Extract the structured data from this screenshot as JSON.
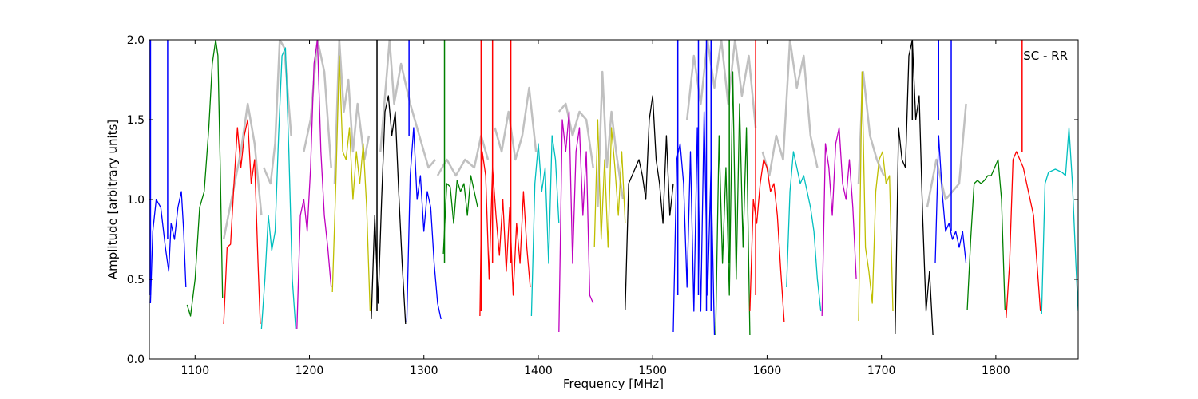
{
  "chart_data": {
    "type": "line",
    "title": "",
    "xlabel": "Frequency [MHz]",
    "ylabel": "Amplitude [arbitrary units]",
    "annotation": "SC - RR",
    "xlim": [
      1060,
      1872
    ],
    "ylim": [
      0.0,
      2.0
    ],
    "xticks": [
      1100,
      1200,
      1300,
      1400,
      1500,
      1600,
      1700,
      1800
    ],
    "yticks": [
      0.0,
      0.5,
      1.0,
      1.5,
      2.0
    ],
    "xtick_labels": [
      "1100",
      "1200",
      "1300",
      "1400",
      "1500",
      "1600",
      "1700",
      "1800"
    ],
    "ytick_labels": [
      "0.0",
      "0.5",
      "1.0",
      "1.5",
      "2.0"
    ],
    "grid": false,
    "reference_color": "#c0c0c0",
    "palette": [
      "#0000ff",
      "#008000",
      "#ff0000",
      "#00bfbf",
      "#bf00bf",
      "#bfbf00",
      "#000000"
    ],
    "segments": [
      {
        "color": "#0000ff",
        "x": [
          1061,
          1063,
          1066,
          1070,
          1074,
          1077,
          1079,
          1082,
          1085,
          1088,
          1090,
          1092
        ],
        "y": [
          0.35,
          0.8,
          1.0,
          0.95,
          0.7,
          0.55,
          0.85,
          0.75,
          0.95,
          1.05,
          0.8,
          0.45
        ]
      },
      {
        "color": "#008000",
        "x": [
          1093,
          1096,
          1100,
          1104,
          1108,
          1112,
          1115,
          1118,
          1120,
          1122,
          1124
        ],
        "y": [
          0.34,
          0.27,
          0.5,
          0.95,
          1.05,
          1.45,
          1.85,
          2.0,
          1.9,
          1.2,
          0.38
        ]
      },
      {
        "color": "#ff0000",
        "x": [
          1125,
          1128,
          1131,
          1134,
          1137,
          1140,
          1143,
          1146,
          1149,
          1152,
          1155,
          1157
        ],
        "y": [
          0.22,
          0.7,
          0.72,
          1.1,
          1.45,
          1.2,
          1.4,
          1.5,
          1.1,
          1.25,
          0.6,
          0.22
        ]
      },
      {
        "color": "#00bfbf",
        "x": [
          1158,
          1161,
          1164,
          1167,
          1170,
          1173,
          1176,
          1179,
          1182,
          1185,
          1188
        ],
        "y": [
          0.19,
          0.5,
          0.9,
          0.68,
          0.8,
          1.4,
          1.9,
          1.95,
          1.3,
          0.5,
          0.19
        ]
      },
      {
        "color": "#bf00bf",
        "x": [
          1189,
          1192,
          1195,
          1198,
          1201,
          1204,
          1207,
          1210,
          1213,
          1216,
          1219
        ],
        "y": [
          0.19,
          0.9,
          1.0,
          0.8,
          1.2,
          1.85,
          2.0,
          1.3,
          0.9,
          0.7,
          0.45
        ]
      },
      {
        "color": "#bfbf00",
        "x": [
          1220,
          1223,
          1226,
          1229,
          1232,
          1235,
          1238,
          1241,
          1244,
          1247,
          1250,
          1253
        ],
        "y": [
          0.42,
          1.1,
          1.9,
          1.3,
          1.25,
          1.45,
          1.0,
          1.3,
          1.1,
          1.35,
          0.95,
          0.3
        ]
      },
      {
        "color": "#000000",
        "x": [
          1254,
          1257,
          1260,
          1263,
          1266,
          1269,
          1272,
          1275,
          1278,
          1281,
          1284
        ],
        "y": [
          0.25,
          0.9,
          0.35,
          1.0,
          1.55,
          1.65,
          1.4,
          1.55,
          1.05,
          0.6,
          0.22
        ]
      },
      {
        "color": "#0000ff",
        "x": [
          1285,
          1288,
          1291,
          1294,
          1297,
          1300,
          1303,
          1306,
          1309,
          1312,
          1315
        ],
        "y": [
          0.23,
          1.15,
          1.45,
          1.0,
          1.15,
          0.8,
          1.05,
          0.95,
          0.6,
          0.35,
          0.25
        ]
      },
      {
        "color": "#008000",
        "x": [
          1317,
          1320,
          1323,
          1326,
          1329,
          1332,
          1335,
          1338,
          1341,
          1344,
          1347
        ],
        "y": [
          0.66,
          1.1,
          1.08,
          0.85,
          1.12,
          1.05,
          1.1,
          0.9,
          1.15,
          1.05,
          0.95
        ]
      },
      {
        "color": "#ff0000",
        "x": [
          1349,
          1351,
          1354,
          1357,
          1360,
          1363,
          1366,
          1369,
          1372,
          1375,
          1378,
          1381,
          1384,
          1387,
          1390,
          1393
        ],
        "y": [
          0.27,
          1.3,
          1.15,
          0.5,
          1.2,
          0.9,
          0.65,
          1.0,
          0.55,
          0.95,
          0.4,
          0.85,
          0.6,
          1.05,
          0.7,
          0.45
        ]
      },
      {
        "color": "#00bfbf",
        "x": [
          1394,
          1397,
          1400,
          1403,
          1406,
          1409,
          1412,
          1415,
          1418
        ],
        "y": [
          0.27,
          1.1,
          1.35,
          1.05,
          1.2,
          0.6,
          1.4,
          1.25,
          0.85
        ]
      },
      {
        "color": "#bf00bf",
        "x": [
          1418,
          1421,
          1424,
          1427,
          1430,
          1433,
          1436,
          1439,
          1442,
          1445,
          1448
        ],
        "y": [
          0.17,
          1.5,
          1.3,
          1.55,
          0.6,
          1.3,
          1.45,
          0.9,
          1.3,
          0.4,
          0.35
        ]
      },
      {
        "color": "#bfbf00",
        "x": [
          1449,
          1452,
          1455,
          1458,
          1461,
          1464,
          1467,
          1470,
          1473,
          1476
        ],
        "y": [
          0.7,
          1.5,
          0.75,
          1.25,
          0.7,
          1.45,
          1.2,
          0.9,
          1.3,
          0.85
        ]
      },
      {
        "color": "#000000",
        "x": [
          1476,
          1479,
          1482,
          1485,
          1488,
          1491,
          1494,
          1497,
          1500,
          1503,
          1506,
          1509,
          1512,
          1515,
          1518
        ],
        "y": [
          0.31,
          1.1,
          1.15,
          1.2,
          1.25,
          1.15,
          1.0,
          1.5,
          1.65,
          1.25,
          1.1,
          0.85,
          1.4,
          0.9,
          1.1
        ]
      },
      {
        "color": "#0000ff",
        "x": [
          1518,
          1521,
          1524,
          1527,
          1530,
          1533,
          1536,
          1539,
          1542,
          1545,
          1548,
          1551,
          1554
        ],
        "y": [
          0.17,
          1.25,
          1.35,
          1.1,
          0.45,
          1.3,
          0.3,
          1.45,
          0.3,
          1.55,
          0.4,
          1.2,
          0.15
        ]
      },
      {
        "color": "#008000",
        "x": [
          1555,
          1558,
          1561,
          1564,
          1567,
          1570,
          1573,
          1576,
          1579,
          1582,
          1585
        ],
        "y": [
          0.15,
          1.4,
          0.6,
          1.2,
          0.4,
          1.8,
          0.5,
          1.6,
          0.7,
          1.45,
          0.15
        ]
      },
      {
        "color": "#ff0000",
        "x": [
          1585,
          1588,
          1591,
          1594,
          1597,
          1600,
          1603,
          1606,
          1609,
          1612,
          1615
        ],
        "y": [
          0.3,
          1.0,
          0.85,
          1.1,
          1.25,
          1.2,
          1.05,
          1.1,
          0.9,
          0.55,
          0.23
        ]
      },
      {
        "color": "#00bfbf",
        "x": [
          1617,
          1620,
          1623,
          1626,
          1629,
          1632,
          1635,
          1638,
          1641,
          1644,
          1647
        ],
        "y": [
          0.45,
          1.05,
          1.3,
          1.2,
          1.1,
          1.15,
          1.05,
          0.95,
          0.8,
          0.5,
          0.3
        ]
      },
      {
        "color": "#bf00bf",
        "x": [
          1648,
          1651,
          1654,
          1657,
          1660,
          1663,
          1666,
          1669,
          1672,
          1675,
          1678
        ],
        "y": [
          0.27,
          1.35,
          1.2,
          0.9,
          1.35,
          1.45,
          1.1,
          1.0,
          1.25,
          0.95,
          0.5
        ]
      },
      {
        "color": "#bfbf00",
        "x": [
          1680,
          1683,
          1686,
          1689,
          1692,
          1695,
          1698,
          1701,
          1704,
          1707,
          1710
        ],
        "y": [
          0.24,
          1.8,
          0.7,
          0.55,
          0.35,
          1.05,
          1.25,
          1.3,
          1.1,
          1.15,
          0.3
        ]
      },
      {
        "color": "#000000",
        "x": [
          1712,
          1715,
          1718,
          1721,
          1724,
          1727,
          1730,
          1733,
          1736,
          1739,
          1742,
          1745
        ],
        "y": [
          0.16,
          1.45,
          1.25,
          1.2,
          1.9,
          2.0,
          1.5,
          1.65,
          0.9,
          0.3,
          0.55,
          0.15
        ]
      },
      {
        "color": "#0000ff",
        "x": [
          1747,
          1750,
          1753,
          1756,
          1759,
          1762,
          1765,
          1768,
          1771,
          1774
        ],
        "y": [
          0.6,
          1.4,
          1.05,
          0.8,
          0.85,
          0.75,
          0.8,
          0.7,
          0.8,
          0.6
        ]
      },
      {
        "color": "#008000",
        "x": [
          1775,
          1778,
          1781,
          1784,
          1787,
          1790,
          1793,
          1796,
          1799,
          1802,
          1805,
          1808
        ],
        "y": [
          0.31,
          0.75,
          1.1,
          1.12,
          1.1,
          1.12,
          1.15,
          1.15,
          1.2,
          1.25,
          1.0,
          0.31
        ]
      },
      {
        "color": "#ff0000",
        "x": [
          1809,
          1812,
          1815,
          1818,
          1821,
          1824,
          1827,
          1830,
          1833,
          1836,
          1839
        ],
        "y": [
          0.26,
          0.6,
          1.25,
          1.3,
          1.25,
          1.2,
          1.1,
          1.0,
          0.9,
          0.6,
          0.3
        ]
      },
      {
        "color": "#00bfbf",
        "x": [
          1840,
          1843,
          1846,
          1849,
          1852,
          1855,
          1858,
          1861,
          1864,
          1867,
          1870,
          1872
        ],
        "y": [
          0.28,
          1.1,
          1.17,
          1.18,
          1.19,
          1.18,
          1.17,
          1.15,
          1.45,
          1.1,
          0.6,
          0.3
        ]
      }
    ],
    "spikes": [
      {
        "color": "#0000ff",
        "x": 1061,
        "y": [
          0.4,
          2.0
        ]
      },
      {
        "color": "#0000ff",
        "x": 1076,
        "y": [
          0.75,
          2.0
        ]
      },
      {
        "color": "#000000",
        "x": 1259,
        "y": [
          0.3,
          2.0
        ]
      },
      {
        "color": "#0000ff",
        "x": 1287,
        "y": [
          1.4,
          2.0
        ]
      },
      {
        "color": "#008000",
        "x": 1318,
        "y": [
          0.6,
          2.0
        ]
      },
      {
        "color": "#ff0000",
        "x": 1350,
        "y": [
          0.3,
          2.0
        ]
      },
      {
        "color": "#ff0000",
        "x": 1360,
        "y": [
          0.6,
          2.0
        ]
      },
      {
        "color": "#ff0000",
        "x": 1376,
        "y": [
          0.6,
          2.0
        ]
      },
      {
        "color": "#0000ff",
        "x": 1522,
        "y": [
          0.4,
          2.0
        ]
      },
      {
        "color": "#0000ff",
        "x": 1540,
        "y": [
          0.4,
          2.0
        ]
      },
      {
        "color": "#0000ff",
        "x": 1547,
        "y": [
          0.3,
          2.0
        ]
      },
      {
        "color": "#0000ff",
        "x": 1551,
        "y": [
          0.3,
          2.0
        ]
      },
      {
        "color": "#008000",
        "x": 1567,
        "y": [
          0.6,
          2.0
        ]
      },
      {
        "color": "#ff0000",
        "x": 1590,
        "y": [
          0.4,
          2.0
        ]
      },
      {
        "color": "#000000",
        "x": 1727,
        "y": [
          1.5,
          2.0
        ]
      },
      {
        "color": "#0000ff",
        "x": 1750,
        "y": [
          1.5,
          2.0
        ]
      },
      {
        "color": "#0000ff",
        "x": 1761,
        "y": [
          0.8,
          2.0
        ]
      },
      {
        "color": "#ff0000",
        "x": 1823,
        "y": [
          1.3,
          2.0
        ]
      }
    ],
    "reference": [
      {
        "x": [
          1125,
          1140,
          1146,
          1152,
          1158
        ],
        "y": [
          0.75,
          1.3,
          1.6,
          1.35,
          0.9
        ]
      },
      {
        "x": [
          1160,
          1166,
          1170,
          1174,
          1178,
          1184
        ],
        "y": [
          1.2,
          1.1,
          1.35,
          2.0,
          1.95,
          1.4
        ]
      },
      {
        "x": [
          1195,
          1201,
          1207,
          1213,
          1219
        ],
        "y": [
          1.3,
          1.5,
          2.0,
          1.8,
          1.2
        ]
      },
      {
        "x": [
          1222,
          1226,
          1230,
          1234,
          1238,
          1242,
          1248,
          1252
        ],
        "y": [
          1.1,
          2.0,
          1.55,
          1.75,
          1.3,
          1.6,
          1.25,
          1.4
        ]
      },
      {
        "x": [
          1262,
          1270,
          1274,
          1280,
          1288,
          1296,
          1304,
          1310
        ],
        "y": [
          1.3,
          2.0,
          1.6,
          1.85,
          1.6,
          1.4,
          1.2,
          1.25
        ]
      },
      {
        "x": [
          1312,
          1320,
          1328,
          1336,
          1344,
          1350,
          1356
        ],
        "y": [
          1.15,
          1.25,
          1.15,
          1.25,
          1.2,
          1.4,
          1.25
        ]
      },
      {
        "x": [
          1362,
          1368,
          1374,
          1380,
          1386,
          1392,
          1398
        ],
        "y": [
          1.45,
          1.3,
          1.55,
          1.25,
          1.4,
          1.7,
          1.3
        ]
      },
      {
        "x": [
          1418,
          1424,
          1430,
          1436,
          1442,
          1448
        ],
        "y": [
          1.55,
          1.6,
          1.4,
          1.55,
          1.5,
          1.2
        ]
      },
      {
        "x": [
          1452,
          1456,
          1460,
          1464,
          1468,
          1474
        ],
        "y": [
          0.95,
          1.8,
          1.2,
          1.55,
          1.3,
          1.0
        ]
      },
      {
        "x": [
          1530,
          1536,
          1542,
          1548,
          1554,
          1560,
          1566,
          1572,
          1578,
          1584,
          1590
        ],
        "y": [
          1.5,
          1.9,
          1.6,
          2.0,
          1.7,
          2.0,
          1.6,
          2.0,
          1.65,
          1.9,
          1.45
        ]
      },
      {
        "x": [
          1596,
          1602,
          1608,
          1614,
          1620,
          1626,
          1632,
          1638,
          1644
        ],
        "y": [
          1.3,
          1.15,
          1.4,
          1.25,
          2.0,
          1.7,
          1.9,
          1.4,
          1.2
        ]
      },
      {
        "x": [
          1680,
          1684,
          1690,
          1696,
          1702
        ],
        "y": [
          1.1,
          1.8,
          1.4,
          1.25,
          1.15
        ]
      },
      {
        "x": [
          1740,
          1748,
          1756,
          1762,
          1768,
          1774
        ],
        "y": [
          0.95,
          1.25,
          1.0,
          1.05,
          1.1,
          1.6
        ]
      }
    ]
  }
}
